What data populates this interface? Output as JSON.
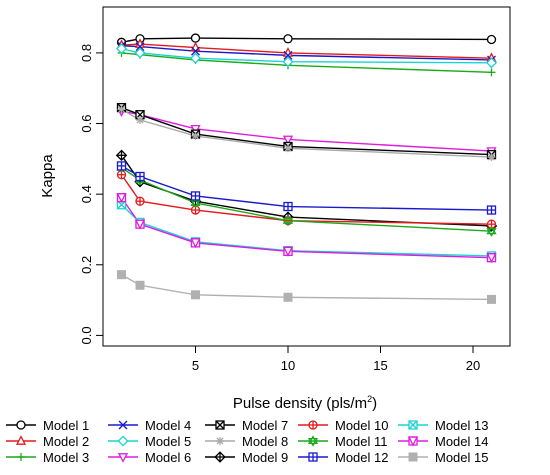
{
  "chart_data": {
    "type": "line",
    "title": "",
    "xlabel": "Pulse density (pls/m",
    "xlabel_sup": "2",
    "xlabel_end": ")",
    "ylabel": "Kappa",
    "x": [
      1,
      2,
      5,
      10,
      21
    ],
    "xlim": [
      0,
      22
    ],
    "ylim": [
      -0.03,
      0.93
    ],
    "xticks": [
      5,
      10,
      15,
      20
    ],
    "yticks": [
      0.0,
      0.2,
      0.4,
      0.6,
      0.8
    ],
    "xtick_labels": [
      "5",
      "10",
      "15",
      "20"
    ],
    "ytick_labels": [
      "0.0",
      "0.2",
      "0.4",
      "0.6",
      "0.8"
    ],
    "grid": false,
    "legend_position": "bottom",
    "series": [
      {
        "name": "Model 1",
        "color": "#000000",
        "marker": "circle",
        "values": [
          0.83,
          0.84,
          0.842,
          0.84,
          0.838
        ]
      },
      {
        "name": "Model 2",
        "color": "#e41a1c",
        "marker": "triangle-up",
        "values": [
          0.822,
          0.825,
          0.815,
          0.8,
          0.785
        ]
      },
      {
        "name": "Model 3",
        "color": "#1aaa1a",
        "marker": "plus",
        "values": [
          0.8,
          0.795,
          0.78,
          0.765,
          0.745
        ]
      },
      {
        "name": "Model 4",
        "color": "#1a1acd",
        "marker": "x",
        "values": [
          0.82,
          0.818,
          0.805,
          0.793,
          0.78
        ]
      },
      {
        "name": "Model 5",
        "color": "#1ad3d3",
        "marker": "diamond",
        "values": [
          0.812,
          0.8,
          0.785,
          0.775,
          0.772
        ]
      },
      {
        "name": "Model 6",
        "color": "#e01ae0",
        "marker": "triangle-down",
        "values": [
          0.635,
          0.625,
          0.585,
          0.555,
          0.522
        ]
      },
      {
        "name": "Model 7",
        "color": "#000000",
        "marker": "square-x",
        "values": [
          0.645,
          0.625,
          0.57,
          0.535,
          0.512
        ]
      },
      {
        "name": "Model 8",
        "color": "#aaaaaa",
        "marker": "asterisk",
        "values": [
          0.64,
          0.61,
          0.565,
          0.53,
          0.505
        ]
      },
      {
        "name": "Model 9",
        "color": "#000000",
        "marker": "diamond-plus",
        "values": [
          0.51,
          0.435,
          0.38,
          0.335,
          0.31
        ]
      },
      {
        "name": "Model 10",
        "color": "#e41a1c",
        "marker": "circle-plus",
        "values": [
          0.455,
          0.38,
          0.355,
          0.325,
          0.315
        ]
      },
      {
        "name": "Model 11",
        "color": "#1aaa1a",
        "marker": "star-of-david",
        "values": [
          0.475,
          0.44,
          0.375,
          0.325,
          0.295
        ]
      },
      {
        "name": "Model 12",
        "color": "#1a1acd",
        "marker": "square-plus",
        "values": [
          0.48,
          0.45,
          0.395,
          0.365,
          0.355
        ]
      },
      {
        "name": "Model 13",
        "color": "#1ad3d3",
        "marker": "square-x",
        "values": [
          0.37,
          0.32,
          0.265,
          0.24,
          0.225
        ]
      },
      {
        "name": "Model 14",
        "color": "#e01ae0",
        "marker": "square-triangle",
        "values": [
          0.39,
          0.315,
          0.262,
          0.238,
          0.22
        ]
      },
      {
        "name": "Model 15",
        "color": "#b0b0b0",
        "marker": "square-filled",
        "values": [
          0.172,
          0.142,
          0.115,
          0.108,
          0.102
        ]
      }
    ]
  }
}
